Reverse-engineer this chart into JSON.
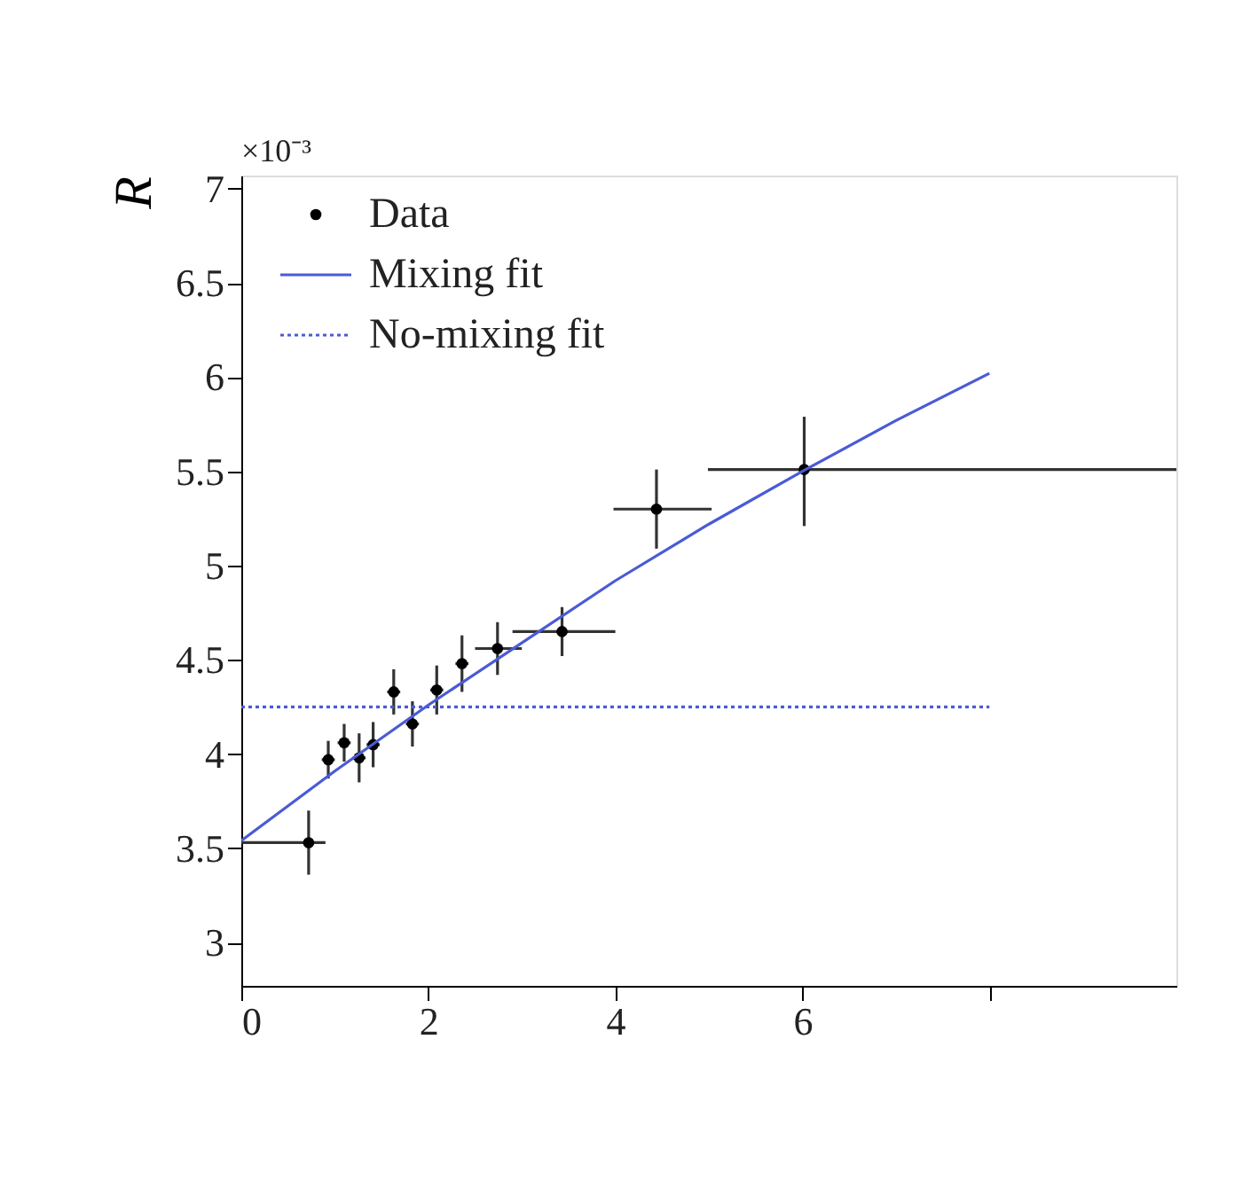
{
  "chart_data": {
    "type": "scatter",
    "ylabel": "R",
    "annotations": [
      "×10⁻³"
    ],
    "xlim": [
      0,
      10
    ],
    "ylim": [
      2.77,
      7.07
    ],
    "xticks": [
      0,
      2,
      4,
      6,
      {
        "value": 8,
        "label": null
      }
    ],
    "yticks": [
      3,
      3.5,
      4,
      4.5,
      5,
      5.5,
      6,
      6.5,
      7
    ],
    "grid": false,
    "legend": "top left",
    "series": [
      {
        "name": "Data",
        "color": "#000000",
        "marker": "circle",
        "x": [
          0.72,
          0.93,
          1.1,
          1.26,
          1.41,
          1.63,
          1.83,
          2.09,
          2.36,
          2.74,
          3.43,
          4.44,
          6.02
        ],
        "values": [
          3.53,
          3.97,
          4.06,
          3.98,
          4.05,
          4.33,
          4.16,
          4.34,
          4.48,
          4.56,
          4.65,
          5.3,
          5.51
        ],
        "errors": [
          [
            3.36,
            3.7
          ],
          0.1,
          0.1,
          0.13,
          0.12,
          0.12,
          0.12,
          0.13,
          0.15,
          0.14,
          [
            4.52,
            4.78
          ],
          [
            5.09,
            5.51
          ],
          [
            5.21,
            5.79
          ]
        ],
        "xerrors": [
          [
            0,
            0.9
          ],
          0.07,
          0.07,
          0.07,
          0.07,
          0.07,
          0.07,
          0.07,
          0.07,
          [
            2.5,
            3.0
          ],
          [
            2.9,
            4.0
          ],
          [
            3.98,
            5.03
          ],
          [
            4.99,
            10
          ]
        ]
      },
      {
        "name": "Mixing fit",
        "type": "line",
        "color": "#4a5bd6",
        "line_style": "solid",
        "x": [
          0,
          1,
          2,
          3,
          4,
          5,
          6,
          7,
          8
        ],
        "values": [
          3.54,
          3.91,
          4.26,
          4.59,
          4.92,
          5.22,
          5.5,
          5.77,
          6.02
        ]
      },
      {
        "name": "No-mixing fit",
        "type": "line",
        "color": "#4a5bd6",
        "line_style": "dotted",
        "x": [
          0,
          8
        ],
        "values": [
          4.25,
          4.25
        ]
      }
    ]
  }
}
